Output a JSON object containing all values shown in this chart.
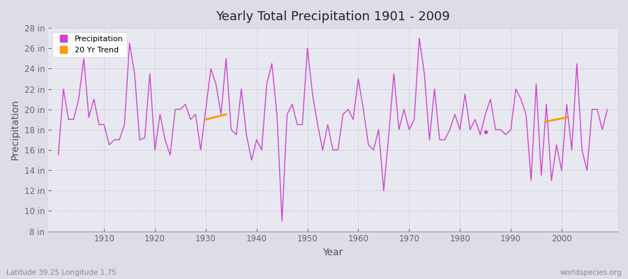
{
  "title": "Yearly Total Precipitation 1901 - 2009",
  "xlabel": "Year",
  "ylabel": "Precipitation",
  "subtitle_lat_lon": "Latitude 39.25 Longitude 1.75",
  "watermark": "worldspecies.org",
  "bg_color": "#dddde8",
  "plot_bg_color": "#e8e8f0",
  "line_color": "#cc44cc",
  "trend_color": "#ff9900",
  "years": [
    1901,
    1902,
    1903,
    1904,
    1905,
    1906,
    1907,
    1908,
    1909,
    1910,
    1911,
    1912,
    1913,
    1914,
    1915,
    1916,
    1917,
    1918,
    1919,
    1920,
    1921,
    1922,
    1923,
    1924,
    1925,
    1926,
    1927,
    1928,
    1929,
    1930,
    1931,
    1932,
    1933,
    1934,
    1935,
    1936,
    1937,
    1938,
    1939,
    1940,
    1941,
    1942,
    1943,
    1944,
    1945,
    1946,
    1947,
    1948,
    1949,
    1950,
    1951,
    1952,
    1953,
    1954,
    1955,
    1956,
    1957,
    1958,
    1959,
    1960,
    1961,
    1962,
    1963,
    1964,
    1965,
    1966,
    1967,
    1968,
    1969,
    1970,
    1971,
    1972,
    1973,
    1974,
    1975,
    1976,
    1977,
    1978,
    1979,
    1980,
    1981,
    1982,
    1983,
    1984,
    1985,
    1986,
    1987,
    1988,
    1989,
    1990,
    1991,
    1992,
    1993,
    1994,
    1995,
    1996,
    1997,
    1998,
    1999,
    2000,
    2001,
    2002,
    2003,
    2004,
    2005,
    2006,
    2007,
    2008,
    2009
  ],
  "precip": [
    15.5,
    22.0,
    19.0,
    19.0,
    21.0,
    25.0,
    19.2,
    21.0,
    18.5,
    18.5,
    16.5,
    17.0,
    17.0,
    18.5,
    26.5,
    23.5,
    17.0,
    17.2,
    23.5,
    16.0,
    19.5,
    17.0,
    15.5,
    20.0,
    20.0,
    20.5,
    19.0,
    19.5,
    16.0,
    20.0,
    24.0,
    22.5,
    19.5,
    25.0,
    18.0,
    17.5,
    22.0,
    17.5,
    15.0,
    17.0,
    16.0,
    22.5,
    24.5,
    19.5,
    9.0,
    19.5,
    20.5,
    18.5,
    18.5,
    26.0,
    21.5,
    18.5,
    16.0,
    18.5,
    16.0,
    16.0,
    19.5,
    20.0,
    19.0,
    23.0,
    20.0,
    16.5,
    16.0,
    18.0,
    12.0,
    17.5,
    23.5,
    18.0,
    20.0,
    18.0,
    19.0,
    27.0,
    23.5,
    17.0,
    22.0,
    17.0,
    17.0,
    18.0,
    19.5,
    18.0,
    21.5,
    18.0,
    19.0,
    17.5,
    19.5,
    21.0,
    18.0,
    18.0,
    17.5,
    18.0,
    22.0,
    21.0,
    19.5,
    13.0,
    22.5,
    13.5,
    20.5,
    13.0,
    16.5,
    14.0,
    20.5,
    16.0,
    24.5,
    16.0,
    14.0,
    20.0,
    20.0,
    18.0,
    20.0
  ],
  "trend_segments": [
    {
      "x": [
        1930,
        1934
      ],
      "y": [
        19.0,
        19.5
      ]
    },
    {
      "x": [
        1997,
        2001
      ],
      "y": [
        18.8,
        19.2
      ]
    }
  ],
  "dot_x": 1985,
  "dot_y": 17.8,
  "ylim": [
    8,
    28
  ],
  "yticks": [
    8,
    10,
    12,
    14,
    16,
    18,
    20,
    22,
    24,
    26,
    28
  ],
  "ytick_labels": [
    "8 in",
    "10 in",
    "12 in",
    "14 in",
    "16 in",
    "18 in",
    "20 in",
    "22 in",
    "24 in",
    "26 in",
    "28 in"
  ],
  "xlim": [
    1899,
    2011
  ],
  "xticks": [
    1910,
    1920,
    1930,
    1940,
    1950,
    1960,
    1970,
    1980,
    1990,
    2000
  ],
  "grid_color": "#bbbbcc",
  "tick_color": "#666666",
  "label_color": "#555555",
  "title_color": "#222222"
}
